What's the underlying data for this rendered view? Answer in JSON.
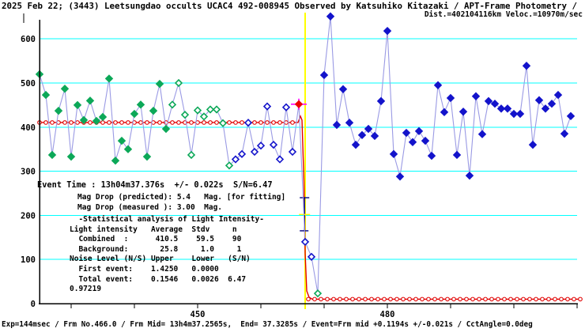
{
  "title_line1": "2025 Feb 22; (3443) Leetsungdao occults UCAC4 492-008945 Observed by Katsuhiko Kitazaki / APT-Frame Photometry /",
  "title_line2": "Dist.=402104116km Veloc.=10970m/sec",
  "event_block": {
    "event_time": "Event Time : 13h04m37.376s  +/- 0.022s  S/N=6.47",
    "mag_lines": [
      "Mag Drop (predicted): 5.4   Mag. [for fitting]",
      "Mag Drop (measured ): 3.00  Mag."
    ]
  },
  "stats_block": {
    "lines": [
      "  -Statistical analysis of Light Intensity-",
      "Light intensity   Average  Stdv     n",
      "  Combined  :      410.5    59.5    90",
      "  Background:       25.8     1.0     1",
      "Noise Level (N/S) Upper    Lower   (S/N)",
      "  First event:    1.4250   0.0000",
      "  Total event:    0.1546   0.0026  6.47",
      "0.97219"
    ]
  },
  "status_line": "Exp=144msec / Frm No.466.0 / Frm Mid= 13h4m37.2565s,  End= 37.3285s / Event=Frm mid +0.1194s +/-0.021s / CctAngle=0.0deg",
  "colors": {
    "grid": "#00ffff",
    "axis": "#000000",
    "curve_line": "#9a9ae4",
    "green": "#0ca858",
    "blue": "#1313cb",
    "model_red": "#e00000",
    "event_red": "#ee0000",
    "cross_magenta": "#ff00ff",
    "event_line_yellow": "#ffff00",
    "error_navy": "#000080"
  },
  "chart_data": {
    "type": "line",
    "title": "Light intensity vs frame number (occultation light curve)",
    "x_axis": {
      "unit": "frame number",
      "tick_frames": [
        430,
        440,
        450,
        460,
        470,
        480,
        490,
        500,
        510
      ],
      "labeled_ticks": [
        {
          "frame": 450,
          "label": "450"
        },
        {
          "frame": 480,
          "label": "480"
        }
      ]
    },
    "y_axis": {
      "tick_values": [
        0,
        100,
        200,
        300,
        400,
        500,
        600
      ],
      "gridline_values": [
        100,
        200,
        300,
        400,
        500,
        600
      ],
      "range": [
        0,
        660
      ]
    },
    "event_line_frame": 467.0,
    "event_point": {
      "frame": 466,
      "value": 452
    },
    "model": {
      "pre_level": 410.5,
      "post_level": 10
    },
    "error_bar": {
      "frame": 466.9,
      "top_value": 240,
      "mid_value": 202,
      "bottom_value": 165
    },
    "marker_legend": {
      "g": "filled green diamond",
      "gh": "hollow green diamond",
      "bh": "hollow blue diamond",
      "b": "filled blue diamond",
      "r": "event point: red diamond with magenta cross"
    },
    "points": [
      [
        425,
        520,
        "g"
      ],
      [
        426,
        473,
        "g"
      ],
      [
        427,
        337,
        "g"
      ],
      [
        428,
        437,
        "g"
      ],
      [
        429,
        487,
        "g"
      ],
      [
        430,
        333,
        "g"
      ],
      [
        431,
        450,
        "g"
      ],
      [
        432,
        416,
        "g"
      ],
      [
        433,
        460,
        "g"
      ],
      [
        434,
        414,
        "g"
      ],
      [
        435,
        423,
        "g"
      ],
      [
        436,
        510,
        "g"
      ],
      [
        437,
        324,
        "g"
      ],
      [
        438,
        369,
        "g"
      ],
      [
        439,
        350,
        "g"
      ],
      [
        440,
        430,
        "g"
      ],
      [
        441,
        451,
        "g"
      ],
      [
        442,
        333,
        "g"
      ],
      [
        443,
        437,
        "g"
      ],
      [
        444,
        498,
        "g"
      ],
      [
        445,
        396,
        "g"
      ],
      [
        446,
        451,
        "gh"
      ],
      [
        447,
        500,
        "gh"
      ],
      [
        448,
        428,
        "gh"
      ],
      [
        449,
        337,
        "gh"
      ],
      [
        450,
        438,
        "gh"
      ],
      [
        451,
        424,
        "gh"
      ],
      [
        452,
        440,
        "gh"
      ],
      [
        453,
        440,
        "gh"
      ],
      [
        454,
        409,
        "gh"
      ],
      [
        455,
        313,
        "gh"
      ],
      [
        456,
        327,
        "bh"
      ],
      [
        457,
        339,
        "bh"
      ],
      [
        458,
        410,
        "bh"
      ],
      [
        459,
        344,
        "bh"
      ],
      [
        460,
        358,
        "bh"
      ],
      [
        461,
        447,
        "bh"
      ],
      [
        462,
        360,
        "bh"
      ],
      [
        463,
        327,
        "bh"
      ],
      [
        464,
        445,
        "bh"
      ],
      [
        465,
        344,
        "bh"
      ],
      [
        466,
        452,
        "r"
      ],
      [
        467,
        140,
        "bh"
      ],
      [
        468,
        106,
        "bh"
      ],
      [
        469,
        23,
        "gh"
      ],
      [
        470,
        518,
        "b"
      ],
      [
        471,
        651,
        "b"
      ],
      [
        472,
        405,
        "b"
      ],
      [
        473,
        486,
        "b"
      ],
      [
        474,
        410,
        "b"
      ],
      [
        475,
        360,
        "b"
      ],
      [
        476,
        382,
        "b"
      ],
      [
        477,
        396,
        "b"
      ],
      [
        478,
        380,
        "b"
      ],
      [
        479,
        459,
        "b"
      ],
      [
        480,
        618,
        "b"
      ],
      [
        481,
        339,
        "b"
      ],
      [
        482,
        288,
        "b"
      ],
      [
        483,
        387,
        "b"
      ],
      [
        484,
        366,
        "b"
      ],
      [
        485,
        391,
        "b"
      ],
      [
        486,
        369,
        "b"
      ],
      [
        487,
        335,
        "b"
      ],
      [
        488,
        495,
        "b"
      ],
      [
        489,
        434,
        "b"
      ],
      [
        490,
        466,
        "b"
      ],
      [
        491,
        337,
        "b"
      ],
      [
        492,
        435,
        "b"
      ],
      [
        493,
        290,
        "b"
      ],
      [
        494,
        470,
        "b"
      ],
      [
        495,
        384,
        "b"
      ],
      [
        496,
        459,
        "b"
      ],
      [
        497,
        453,
        "b"
      ],
      [
        498,
        442,
        "b"
      ],
      [
        499,
        442,
        "b"
      ],
      [
        500,
        430,
        "b"
      ],
      [
        501,
        430,
        "b"
      ],
      [
        502,
        539,
        "b"
      ],
      [
        503,
        360,
        "b"
      ],
      [
        504,
        461,
        "b"
      ],
      [
        505,
        442,
        "b"
      ],
      [
        506,
        453,
        "b"
      ],
      [
        507,
        473,
        "b"
      ],
      [
        508,
        385,
        "b"
      ],
      [
        509,
        425,
        "b"
      ]
    ]
  }
}
